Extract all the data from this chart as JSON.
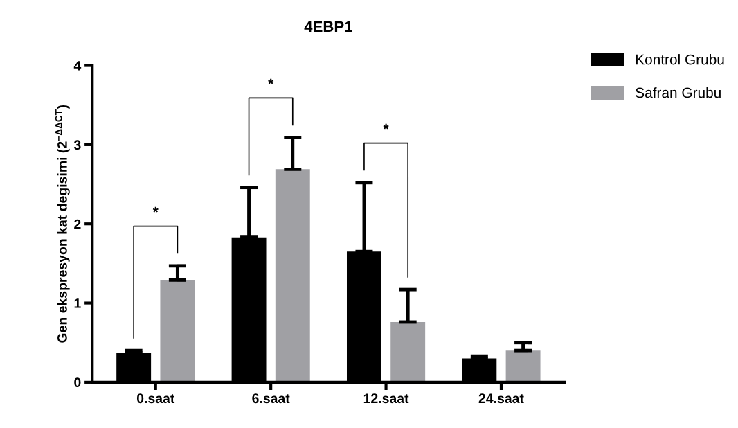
{
  "chart_data": {
    "type": "bar",
    "title": "4EBP1",
    "ylabel": "Gen ekspresyon kat degisimi (2$^{−ΔΔCT}$)",
    "categories": [
      "0.saat",
      "6.saat",
      "12.saat",
      "24.saat"
    ],
    "series": [
      {
        "name": "Kontrol Grubu",
        "color": "#000000",
        "values": [
          0.37,
          1.83,
          1.65,
          0.3
        ],
        "errors": [
          [
            0.37,
            0.4
          ],
          [
            1.83,
            2.46
          ],
          [
            1.65,
            2.52
          ],
          [
            0.3,
            0.33
          ]
        ]
      },
      {
        "name": "Safran Grubu",
        "color": "#a0a0a4",
        "values": [
          1.29,
          2.69,
          0.76,
          0.4
        ],
        "errors": [
          [
            1.29,
            1.47
          ],
          [
            2.69,
            3.09
          ],
          [
            0.76,
            1.17
          ],
          [
            0.4,
            0.5
          ]
        ]
      }
    ],
    "ylim": [
      0,
      4
    ],
    "yticks": [
      0,
      1,
      2,
      3,
      4
    ],
    "grid": false,
    "legend": "top right",
    "annotations": [
      "*",
      "*",
      "*"
    ]
  }
}
